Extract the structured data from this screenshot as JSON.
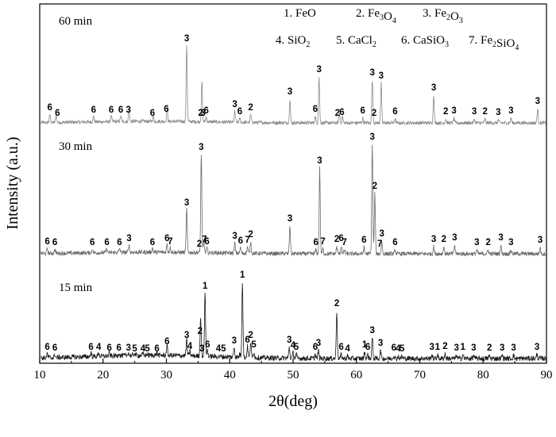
{
  "chart_data": {
    "type": "line",
    "title": "",
    "xlabel": "2θ(deg)",
    "ylabel": "Intensity (a.u.)",
    "xlim": [
      10,
      90
    ],
    "xticks": [
      10,
      20,
      30,
      40,
      50,
      60,
      70,
      80,
      90
    ],
    "yticks_shown": false,
    "legend": {
      "placement": "top-right",
      "entries": [
        {
          "n": "1.",
          "t": "FeO"
        },
        {
          "n": "2.",
          "t": "Fe",
          "s": "3",
          "t2": "O",
          "s2": "4"
        },
        {
          "n": "3.",
          "t": "Fe",
          "s": "2",
          "t2": "O",
          "s2": "3"
        },
        {
          "n": "4.",
          "t": "SiO",
          "s": "2"
        },
        {
          "n": "5.",
          "t": "CaCl",
          "s": "2"
        },
        {
          "n": "6.",
          "t": "CaSiO",
          "s": "3"
        },
        {
          "n": "7.",
          "t": "Fe",
          "s": "2",
          "t2": "SiO",
          "s2": "4"
        }
      ]
    },
    "series": [
      {
        "name": "60 min",
        "color": "#8a8a8a",
        "peaks": [
          [
            11.6,
            10
          ],
          [
            12.6,
            9
          ],
          [
            18.5,
            7
          ],
          [
            21.3,
            7
          ],
          [
            22.8,
            7
          ],
          [
            24.1,
            14
          ],
          [
            27.9,
            6
          ],
          [
            30.1,
            16
          ],
          [
            33.2,
            97
          ],
          [
            35.6,
            50
          ],
          [
            36.3,
            6
          ],
          [
            40.8,
            14
          ],
          [
            41.6,
            5
          ],
          [
            43.3,
            10
          ],
          [
            49.5,
            30
          ],
          [
            53.5,
            8
          ],
          [
            54.1,
            58
          ],
          [
            57.3,
            12
          ],
          [
            57.8,
            8
          ],
          [
            61.0,
            6
          ],
          [
            62.5,
            54
          ],
          [
            63.9,
            50
          ],
          [
            66.1,
            5
          ],
          [
            72.2,
            35
          ],
          [
            74.1,
            5
          ],
          [
            75.4,
            6
          ],
          [
            78.6,
            5
          ],
          [
            80.3,
            5
          ],
          [
            82.4,
            4
          ],
          [
            84.4,
            6
          ],
          [
            88.6,
            18
          ]
        ],
        "labels": [
          [
            11.6,
            "6"
          ],
          [
            12.8,
            "6"
          ],
          [
            18.5,
            "6"
          ],
          [
            21.3,
            "6"
          ],
          [
            22.8,
            "6"
          ],
          [
            24.0,
            "3"
          ],
          [
            27.8,
            "6"
          ],
          [
            30.0,
            "6"
          ],
          [
            33.2,
            "3"
          ],
          [
            35.4,
            "2"
          ],
          [
            35.8,
            "3"
          ],
          [
            36.3,
            "6"
          ],
          [
            40.8,
            "3"
          ],
          [
            41.6,
            "6"
          ],
          [
            43.3,
            "2"
          ],
          [
            49.5,
            "3"
          ],
          [
            53.5,
            "6"
          ],
          [
            54.1,
            "3"
          ],
          [
            57.0,
            "2"
          ],
          [
            57.7,
            "6"
          ],
          [
            61.0,
            "6"
          ],
          [
            62.5,
            "3"
          ],
          [
            62.8,
            "2"
          ],
          [
            63.9,
            "3"
          ],
          [
            66.1,
            "6"
          ],
          [
            72.2,
            "3"
          ],
          [
            74.1,
            "2"
          ],
          [
            75.4,
            "3"
          ],
          [
            78.6,
            "3"
          ],
          [
            80.3,
            "2"
          ],
          [
            82.4,
            "3"
          ],
          [
            84.4,
            "3"
          ],
          [
            88.6,
            "3"
          ]
        ]
      },
      {
        "name": "30 min",
        "color": "#6a6a6a",
        "peaks": [
          [
            11.2,
            6
          ],
          [
            12.4,
            5
          ],
          [
            18.3,
            5
          ],
          [
            20.6,
            5
          ],
          [
            22.6,
            5
          ],
          [
            24.1,
            10
          ],
          [
            27.8,
            5
          ],
          [
            30.1,
            10
          ],
          [
            30.6,
            6
          ],
          [
            33.2,
            55
          ],
          [
            35.5,
            125
          ],
          [
            35.9,
            17
          ],
          [
            36.4,
            6
          ],
          [
            40.8,
            13
          ],
          [
            41.7,
            7
          ],
          [
            42.8,
            8
          ],
          [
            43.3,
            15
          ],
          [
            49.5,
            35
          ],
          [
            53.6,
            5
          ],
          [
            54.2,
            108
          ],
          [
            54.7,
            6
          ],
          [
            56.9,
            9
          ],
          [
            57.6,
            10
          ],
          [
            58.1,
            5
          ],
          [
            61.2,
            8
          ],
          [
            62.5,
            138
          ],
          [
            62.9,
            76
          ],
          [
            64.0,
            16
          ],
          [
            66.1,
            5
          ],
          [
            72.2,
            9
          ],
          [
            73.8,
            9
          ],
          [
            75.5,
            11
          ],
          [
            79.0,
            5
          ],
          [
            80.8,
            5
          ],
          [
            82.8,
            11
          ],
          [
            84.4,
            5
          ],
          [
            89.0,
            8
          ]
        ],
        "labels": [
          [
            11.2,
            "6"
          ],
          [
            12.4,
            "6"
          ],
          [
            18.3,
            "6"
          ],
          [
            20.6,
            "6"
          ],
          [
            22.6,
            "6"
          ],
          [
            24.1,
            "3"
          ],
          [
            27.8,
            "6"
          ],
          [
            30.1,
            "6"
          ],
          [
            30.6,
            "7"
          ],
          [
            33.2,
            "3"
          ],
          [
            35.2,
            "2"
          ],
          [
            35.5,
            "3"
          ],
          [
            36.0,
            "7"
          ],
          [
            36.4,
            "6"
          ],
          [
            40.8,
            "3"
          ],
          [
            41.7,
            "6"
          ],
          [
            42.8,
            "7"
          ],
          [
            43.3,
            "2"
          ],
          [
            49.5,
            "3"
          ],
          [
            53.6,
            "6"
          ],
          [
            54.2,
            "3"
          ],
          [
            54.7,
            "7"
          ],
          [
            56.9,
            "2"
          ],
          [
            57.6,
            "6"
          ],
          [
            58.1,
            "7"
          ],
          [
            61.2,
            "6"
          ],
          [
            62.5,
            "3"
          ],
          [
            62.9,
            "2"
          ],
          [
            63.7,
            "7"
          ],
          [
            64.0,
            "3"
          ],
          [
            66.1,
            "6"
          ],
          [
            72.2,
            "3"
          ],
          [
            73.8,
            "2"
          ],
          [
            75.5,
            "3"
          ],
          [
            79.0,
            "3"
          ],
          [
            80.8,
            "2"
          ],
          [
            82.8,
            "3"
          ],
          [
            84.4,
            "3"
          ],
          [
            89.0,
            "3"
          ]
        ]
      },
      {
        "name": "15 min",
        "color": "#1a1a1a",
        "peaks": [
          [
            11.2,
            5
          ],
          [
            12.4,
            4
          ],
          [
            18.1,
            5
          ],
          [
            19.3,
            5
          ],
          [
            21.0,
            4
          ],
          [
            22.5,
            4
          ],
          [
            24.0,
            4
          ],
          [
            25.0,
            3
          ],
          [
            26.3,
            2
          ],
          [
            27.0,
            2
          ],
          [
            28.5,
            3
          ],
          [
            30.1,
            12
          ],
          [
            33.2,
            20
          ],
          [
            33.7,
            6
          ],
          [
            35.4,
            50
          ],
          [
            36.1,
            82
          ],
          [
            36.5,
            8
          ],
          [
            40.7,
            13
          ],
          [
            41.6,
            4
          ],
          [
            42.0,
            96
          ],
          [
            42.8,
            14
          ],
          [
            43.3,
            20
          ],
          [
            43.8,
            8
          ],
          [
            49.4,
            14
          ],
          [
            50.0,
            7
          ],
          [
            50.5,
            5
          ],
          [
            53.5,
            5
          ],
          [
            54.0,
            10
          ],
          [
            56.9,
            60
          ],
          [
            57.6,
            5
          ],
          [
            58.6,
            3
          ],
          [
            61.3,
            8
          ],
          [
            61.8,
            5
          ],
          [
            62.5,
            26
          ],
          [
            63.8,
            10
          ],
          [
            65.9,
            4
          ],
          [
            66.6,
            3
          ],
          [
            67.2,
            3
          ],
          [
            71.9,
            5
          ],
          [
            72.8,
            5
          ],
          [
            74.0,
            6
          ],
          [
            75.8,
            4
          ],
          [
            76.8,
            5
          ],
          [
            78.5,
            4
          ],
          [
            81.0,
            4
          ],
          [
            83.0,
            4
          ],
          [
            84.8,
            4
          ],
          [
            88.5,
            5
          ]
        ],
        "labels": [
          [
            11.2,
            "6"
          ],
          [
            12.4,
            "6"
          ],
          [
            18.1,
            "6"
          ],
          [
            19.3,
            "4"
          ],
          [
            21.0,
            "6"
          ],
          [
            22.5,
            "6"
          ],
          [
            24.0,
            "3"
          ],
          [
            25.0,
            "5"
          ],
          [
            26.3,
            "4"
          ],
          [
            27.0,
            "5"
          ],
          [
            28.5,
            "6"
          ],
          [
            30.1,
            "6"
          ],
          [
            33.2,
            "3"
          ],
          [
            33.7,
            "4"
          ],
          [
            35.3,
            "2"
          ],
          [
            35.6,
            "3"
          ],
          [
            36.1,
            "1"
          ],
          [
            36.5,
            "6"
          ],
          [
            38.2,
            "4"
          ],
          [
            39.0,
            "5"
          ],
          [
            40.7,
            "3"
          ],
          [
            42.0,
            "1"
          ],
          [
            42.8,
            "6"
          ],
          [
            43.3,
            "2"
          ],
          [
            43.8,
            "5"
          ],
          [
            49.4,
            "3"
          ],
          [
            50.0,
            "4"
          ],
          [
            50.5,
            "5"
          ],
          [
            53.5,
            "6"
          ],
          [
            54.0,
            "3"
          ],
          [
            56.9,
            "2"
          ],
          [
            57.6,
            "6"
          ],
          [
            58.6,
            "4"
          ],
          [
            61.3,
            "1"
          ],
          [
            61.8,
            "6"
          ],
          [
            62.5,
            "3"
          ],
          [
            63.8,
            "3"
          ],
          [
            65.9,
            "6"
          ],
          [
            66.6,
            "4"
          ],
          [
            67.2,
            "5"
          ],
          [
            71.9,
            "3"
          ],
          [
            72.8,
            "1"
          ],
          [
            74.0,
            "2"
          ],
          [
            75.8,
            "3"
          ],
          [
            76.8,
            "1"
          ],
          [
            78.5,
            "3"
          ],
          [
            81.0,
            "2"
          ],
          [
            83.0,
            "3"
          ],
          [
            84.8,
            "3"
          ],
          [
            88.5,
            "3"
          ]
        ]
      }
    ]
  }
}
